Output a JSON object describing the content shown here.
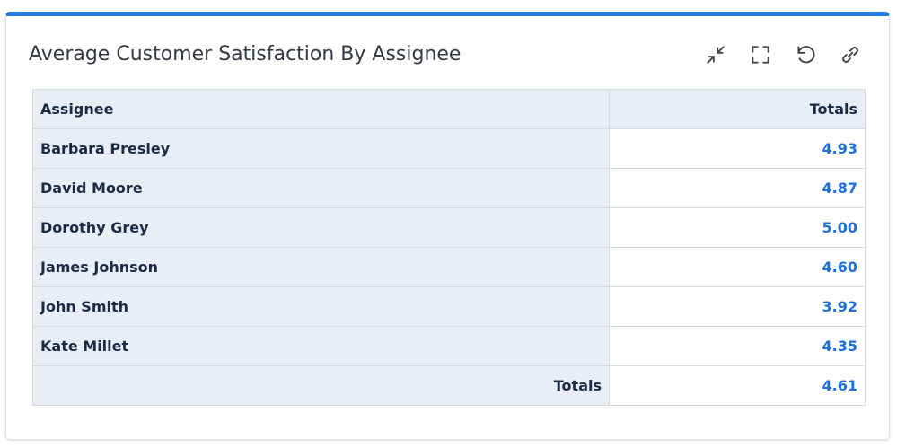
{
  "header": {
    "title": "Average Customer Satisfaction By Assignee"
  },
  "table": {
    "columns": [
      "Assignee",
      "Totals"
    ],
    "rows": [
      [
        "Barbara Presley",
        "4.93"
      ],
      [
        "David Moore",
        "4.87"
      ],
      [
        "Dorothy Grey",
        "5.00"
      ],
      [
        "James Johnson",
        "4.60"
      ],
      [
        "John Smith",
        "3.92"
      ],
      [
        "Kate Millet",
        "4.35"
      ]
    ],
    "totals": [
      "Totals",
      "4.61"
    ]
  }
}
